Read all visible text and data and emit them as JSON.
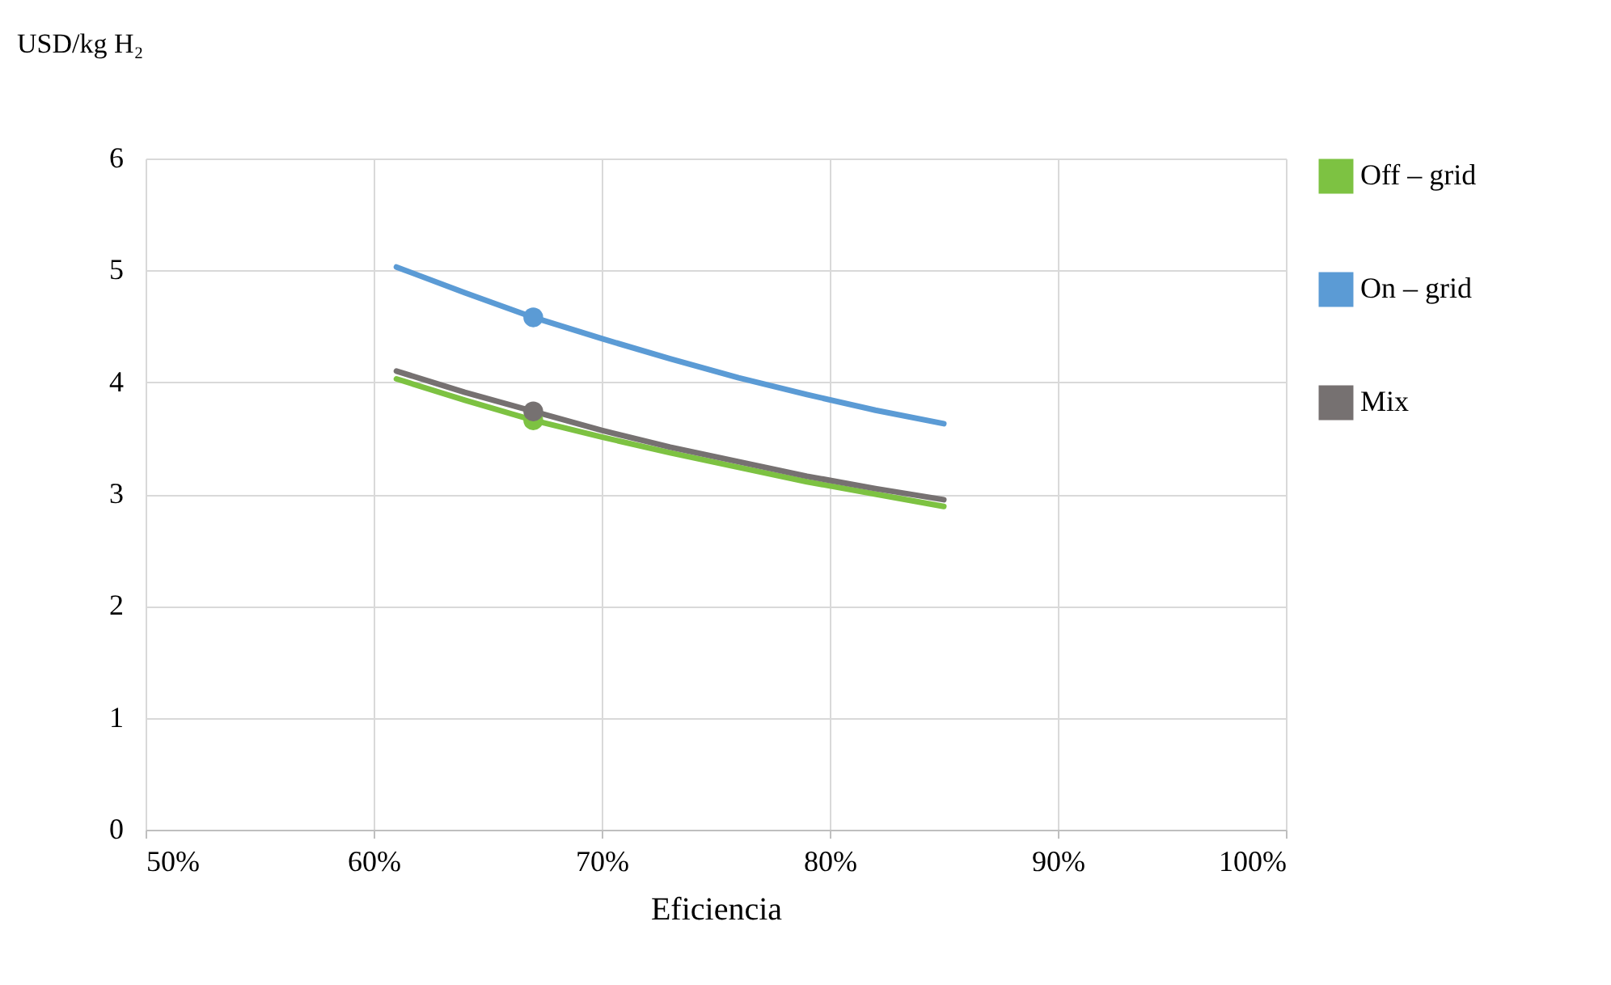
{
  "chart_data": {
    "type": "line",
    "xlabel": "Eficiencia",
    "ylabel": "USD/kg H₂",
    "xlim": [
      50,
      100
    ],
    "xticks": [
      {
        "value": 50,
        "label": "50%"
      },
      {
        "value": 60,
        "label": "60%"
      },
      {
        "value": 70,
        "label": "70%"
      },
      {
        "value": 80,
        "label": "80%"
      },
      {
        "value": 90,
        "label": "90%"
      },
      {
        "value": 100,
        "label": "100%"
      }
    ],
    "ylim": [
      0,
      6
    ],
    "yticks": [
      0,
      1,
      2,
      3,
      4,
      5,
      6
    ],
    "grid": true,
    "legend": "right",
    "line_style": "solid",
    "series": [
      {
        "name": "Off – grid",
        "color": "#7dc242",
        "x": [
          61,
          64,
          67,
          70,
          73,
          76,
          79,
          82,
          85
        ],
        "values": [
          4.03,
          3.84,
          3.66,
          3.51,
          3.37,
          3.24,
          3.11,
          3.0,
          2.89
        ]
      },
      {
        "name": "On – grid",
        "color": "#5b9bd5",
        "x": [
          61,
          64,
          67,
          70,
          73,
          76,
          79,
          82,
          85
        ],
        "values": [
          5.03,
          4.8,
          4.58,
          4.39,
          4.21,
          4.04,
          3.89,
          3.75,
          3.63
        ]
      },
      {
        "name": "Mix",
        "color": "#767171",
        "x": [
          61,
          64,
          67,
          70,
          73,
          76,
          79,
          82,
          85
        ],
        "values": [
          4.1,
          3.91,
          3.74,
          3.57,
          3.42,
          3.29,
          3.16,
          3.05,
          2.95
        ]
      },
      {
        "type": "scatter",
        "color": "#7dc242",
        "x": [
          67
        ],
        "values": [
          3.66
        ]
      },
      {
        "type": "scatter",
        "color": "#5b9bd5",
        "x": [
          67
        ],
        "values": [
          4.58
        ]
      },
      {
        "type": "scatter",
        "color": "#767171",
        "x": [
          67
        ],
        "values": [
          3.74
        ]
      }
    ]
  }
}
